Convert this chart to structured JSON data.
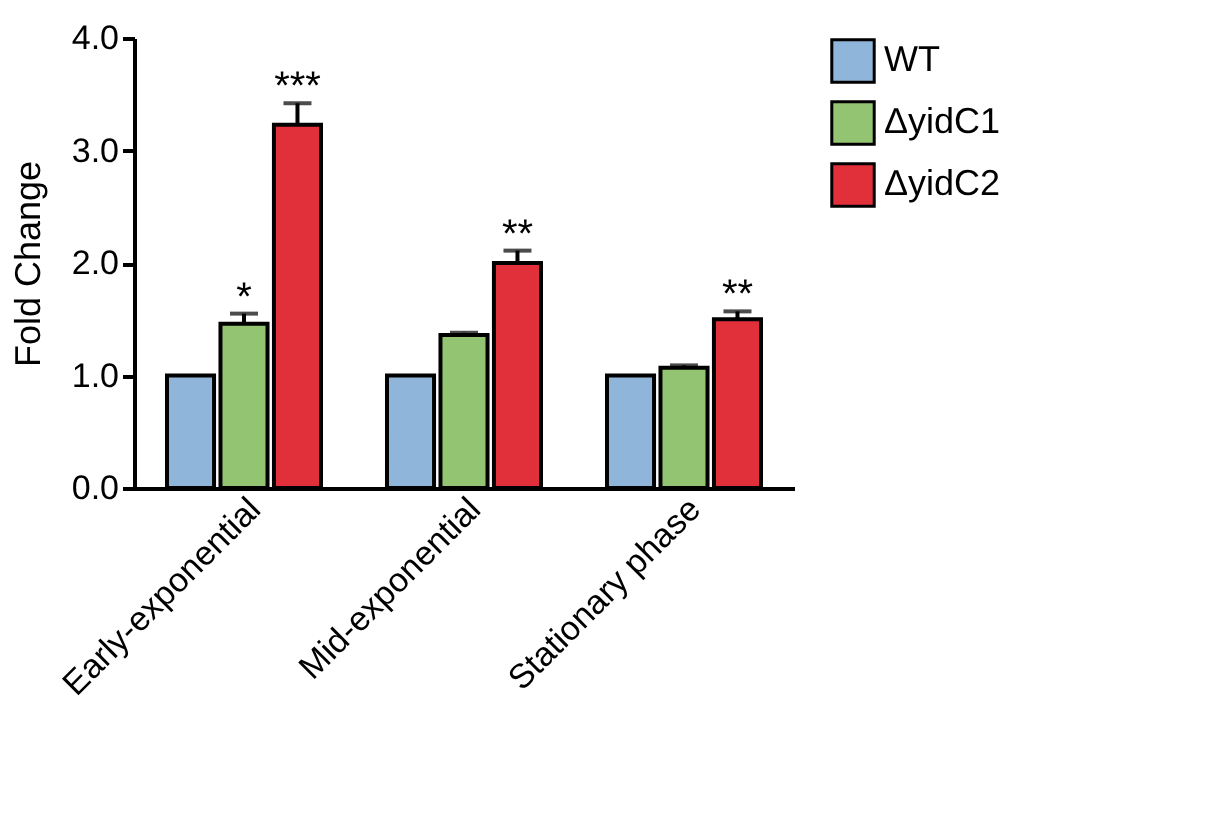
{
  "chart_data": {
    "type": "bar",
    "ylabel": "Fold Change",
    "categories": [
      "Early-exponential",
      "Mid-exponential",
      "Stationary phase"
    ],
    "series": [
      {
        "name": "WT",
        "color": "#8fb6da",
        "values": [
          1.0,
          1.0,
          1.0
        ]
      },
      {
        "name": "ΔyidC1",
        "color": "#93c472",
        "values": [
          1.46,
          1.36,
          1.07
        ],
        "errors": [
          0.09,
          0.02,
          0.02
        ],
        "value_labels": [
          "*",
          null,
          null
        ]
      },
      {
        "name": "ΔyidC2",
        "color": "#e2303a",
        "values": [
          3.23,
          2.0,
          1.5
        ],
        "errors": [
          0.19,
          0.11,
          0.07
        ],
        "value_labels": [
          "***",
          "**",
          "**"
        ]
      }
    ],
    "ylim": [
      0,
      4
    ],
    "yticks": [
      {
        "value": 0,
        "label": "0.0"
      },
      {
        "value": 1,
        "label": "1.0"
      },
      {
        "value": 2,
        "label": "2.0"
      },
      {
        "value": 3,
        "label": "3.0"
      },
      {
        "value": 4,
        "label": "4.0"
      }
    ],
    "grid": false,
    "legend": "top right"
  }
}
